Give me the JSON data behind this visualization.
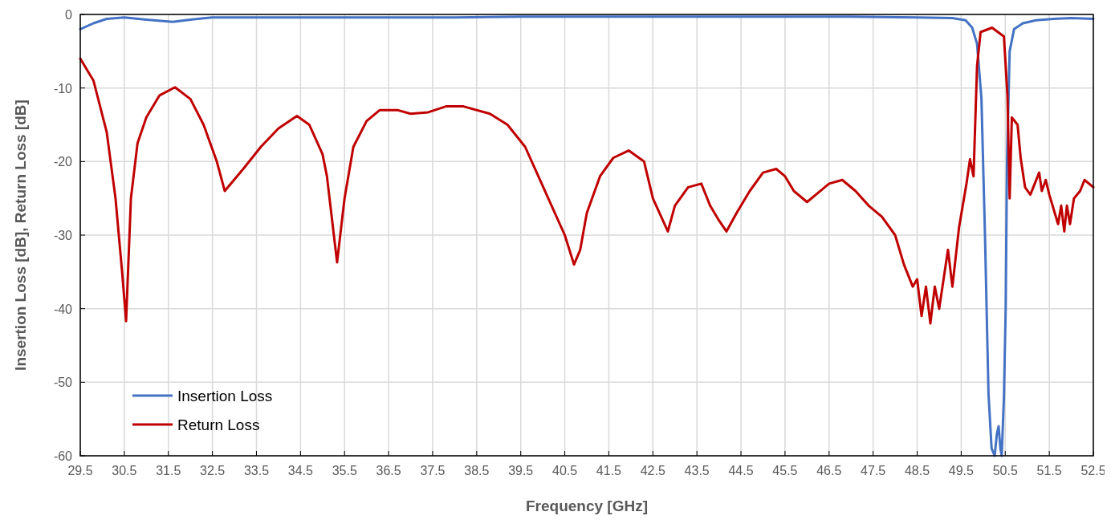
{
  "chart_data": {
    "type": "line",
    "xlabel": "Frequency [GHz]",
    "ylabel": "Insertion Loss [dB], Return Loss [dB]",
    "xlim": [
      29.5,
      52.5
    ],
    "xticks": [
      29.5,
      30.5,
      31.5,
      32.5,
      33.5,
      34.5,
      35.5,
      36.5,
      37.5,
      38.5,
      39.5,
      40.5,
      41.5,
      42.5,
      43.5,
      44.5,
      45.5,
      46.5,
      47.5,
      48.5,
      49.5,
      50.5,
      51.5,
      52.5
    ],
    "ylim": [
      -60,
      0
    ],
    "yticks": [
      -60,
      -50,
      -40,
      -30,
      -20,
      -10,
      0
    ],
    "grid": true,
    "legend": "bottom left",
    "marker": "none",
    "line_style": "solid",
    "series": [
      {
        "name": "Insertion Loss",
        "color": "#4472c4",
        "x": [
          29.5,
          29.8,
          30.1,
          30.5,
          31.0,
          31.6,
          32.0,
          32.5,
          33.5,
          35.0,
          36.5,
          38.0,
          39.5,
          41.0,
          43.0,
          45.0,
          47.0,
          48.5,
          49.3,
          49.6,
          49.75,
          49.86,
          49.96,
          50.04,
          50.12,
          50.19,
          50.26,
          50.31,
          50.35,
          50.39,
          50.42,
          50.47,
          50.51,
          50.54,
          50.6,
          50.7,
          50.9,
          51.2,
          51.6,
          52.0,
          52.5
        ],
        "values": [
          -2,
          -1.2,
          -0.6,
          -0.4,
          -0.7,
          -1,
          -0.7,
          -0.4,
          -0.4,
          -0.4,
          -0.4,
          -0.4,
          -0.3,
          -0.3,
          -0.3,
          -0.3,
          -0.3,
          -0.4,
          -0.5,
          -0.8,
          -1.8,
          -4,
          -11.5,
          -30,
          -51.6,
          -59,
          -60,
          -57,
          -56,
          -59,
          -60,
          -52,
          -40,
          -20,
          -5,
          -2,
          -1.2,
          -0.8,
          -0.6,
          -0.5,
          -0.6
        ]
      },
      {
        "name": "Return Loss",
        "color": "#c00000",
        "x": [
          29.5,
          29.8,
          30.1,
          30.3,
          30.45,
          30.54,
          30.65,
          30.8,
          31.0,
          31.3,
          31.65,
          32.0,
          32.3,
          32.6,
          32.78,
          33.2,
          33.6,
          34.0,
          34.42,
          34.7,
          35.0,
          35.1,
          35.33,
          35.5,
          35.7,
          36.0,
          36.3,
          36.7,
          37.0,
          37.4,
          37.8,
          38.2,
          38.8,
          39.2,
          39.6,
          39.9,
          40.2,
          40.5,
          40.71,
          40.85,
          41.0,
          41.3,
          41.6,
          41.95,
          42.3,
          42.5,
          42.84,
          43.0,
          43.3,
          43.6,
          43.8,
          44.0,
          44.17,
          44.4,
          44.7,
          45.0,
          45.3,
          45.5,
          45.7,
          46.0,
          46.2,
          46.5,
          46.8,
          47.1,
          47.4,
          47.7,
          48.0,
          48.2,
          48.4,
          48.5,
          48.6,
          48.7,
          48.8,
          48.9,
          49.0,
          49.2,
          49.3,
          49.45,
          49.62,
          49.7,
          49.78,
          49.86,
          49.94,
          50.2,
          50.47,
          50.55,
          50.6,
          50.65,
          50.78,
          50.85,
          50.95,
          51.07,
          51.27,
          51.33,
          51.42,
          51.5,
          51.7,
          51.77,
          51.84,
          51.9,
          51.97,
          52.06,
          52.2,
          52.3,
          52.5
        ],
        "values": [
          -6,
          -9,
          -16,
          -25,
          -35,
          -41.7,
          -25,
          -17.5,
          -14,
          -11,
          -9.9,
          -11.5,
          -15,
          -20,
          -24,
          -21,
          -18,
          -15.5,
          -13.8,
          -15,
          -19,
          -22,
          -33.7,
          -25,
          -18,
          -14.5,
          -13,
          -13,
          -13.5,
          -13.3,
          -12.5,
          -12.5,
          -13.5,
          -15,
          -18,
          -22,
          -26,
          -30,
          -34,
          -32,
          -27,
          -22,
          -19.5,
          -18.5,
          -20,
          -25,
          -29.5,
          -26,
          -23.5,
          -23,
          -26,
          -28,
          -29.5,
          -27,
          -24,
          -21.5,
          -21,
          -22,
          -24,
          -25.5,
          -24.5,
          -23,
          -22.5,
          -24,
          -26,
          -27.5,
          -30,
          -34,
          -37,
          -36,
          -41,
          -37,
          -42,
          -37,
          -40,
          -32,
          -37,
          -29,
          -23,
          -19.7,
          -22,
          -7,
          -2.4,
          -1.8,
          -3,
          -11,
          -25,
          -14,
          -15,
          -19.5,
          -23.5,
          -24.5,
          -21.5,
          -24,
          -22.5,
          -24.5,
          -28.5,
          -26,
          -29.5,
          -26,
          -28.5,
          -25,
          -24,
          -22.5,
          -23.5
        ]
      }
    ]
  }
}
